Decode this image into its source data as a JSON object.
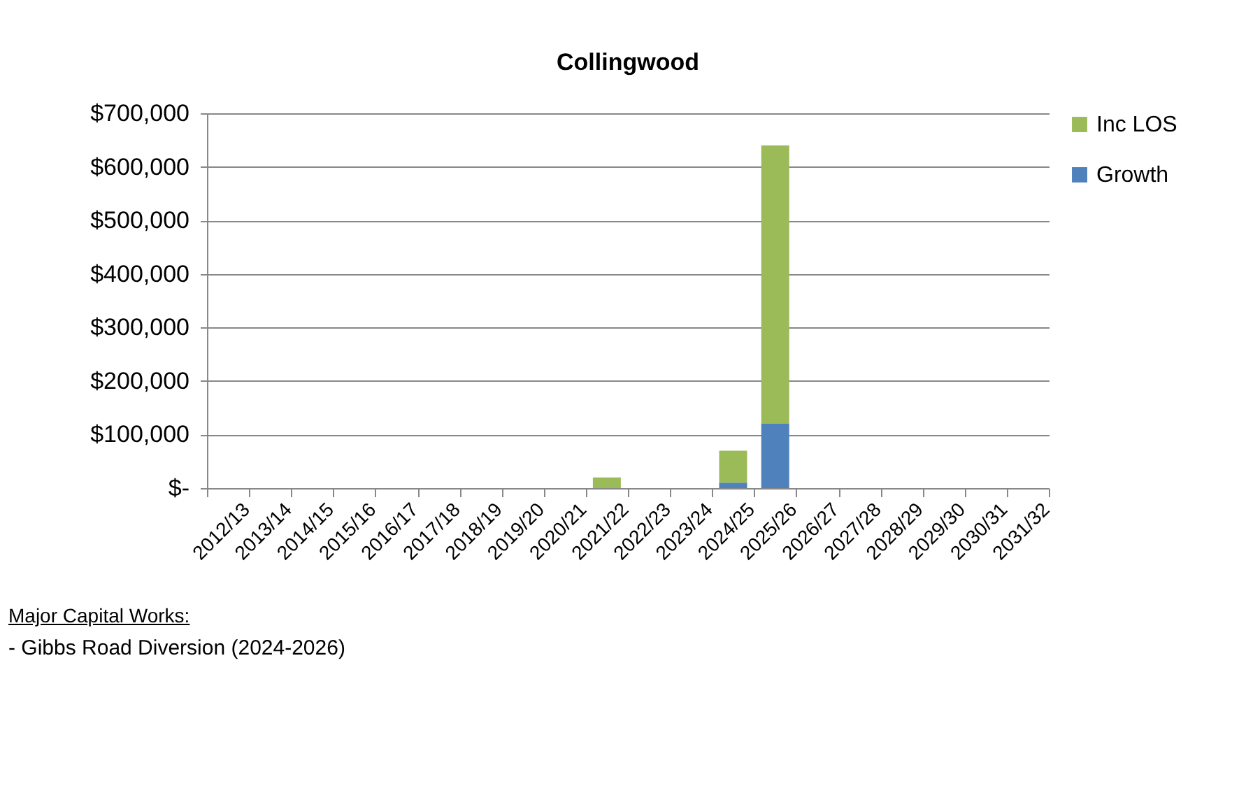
{
  "chart_data": {
    "type": "bar",
    "title": "Collingwood",
    "stacked": true,
    "categories": [
      "2012/13",
      "2013/14",
      "2014/15",
      "2015/16",
      "2016/17",
      "2017/18",
      "2018/19",
      "2019/20",
      "2020/21",
      "2021/22",
      "2022/23",
      "2023/24",
      "2024/25",
      "2025/26",
      "2026/27",
      "2027/28",
      "2028/29",
      "2029/30",
      "2030/31",
      "2031/32"
    ],
    "series": [
      {
        "name": "Growth",
        "color": "#4f81bd",
        "values": [
          0,
          0,
          0,
          0,
          0,
          0,
          0,
          0,
          0,
          0,
          0,
          0,
          10000,
          120000,
          0,
          0,
          0,
          0,
          0,
          0
        ]
      },
      {
        "name": "Inc LOS",
        "color": "#9bbb59",
        "values": [
          0,
          0,
          0,
          0,
          0,
          0,
          0,
          0,
          0,
          20000,
          0,
          0,
          60000,
          520000,
          0,
          0,
          0,
          0,
          0,
          0
        ]
      }
    ],
    "ylim": [
      0,
      700000
    ],
    "yticks": [
      {
        "value": 0,
        "label": "$-"
      },
      {
        "value": 100000,
        "label": "$100,000"
      },
      {
        "value": 200000,
        "label": "$200,000"
      },
      {
        "value": 300000,
        "label": "$300,000"
      },
      {
        "value": 400000,
        "label": "$400,000"
      },
      {
        "value": 500000,
        "label": "$500,000"
      },
      {
        "value": 600000,
        "label": "$600,000"
      },
      {
        "value": 700000,
        "label": "$700,000"
      }
    ],
    "grid": "y",
    "legend": "right",
    "annotations": [
      "Major Capital Works:",
      "- Gibbs Road Diversion (2024-2026)"
    ]
  }
}
